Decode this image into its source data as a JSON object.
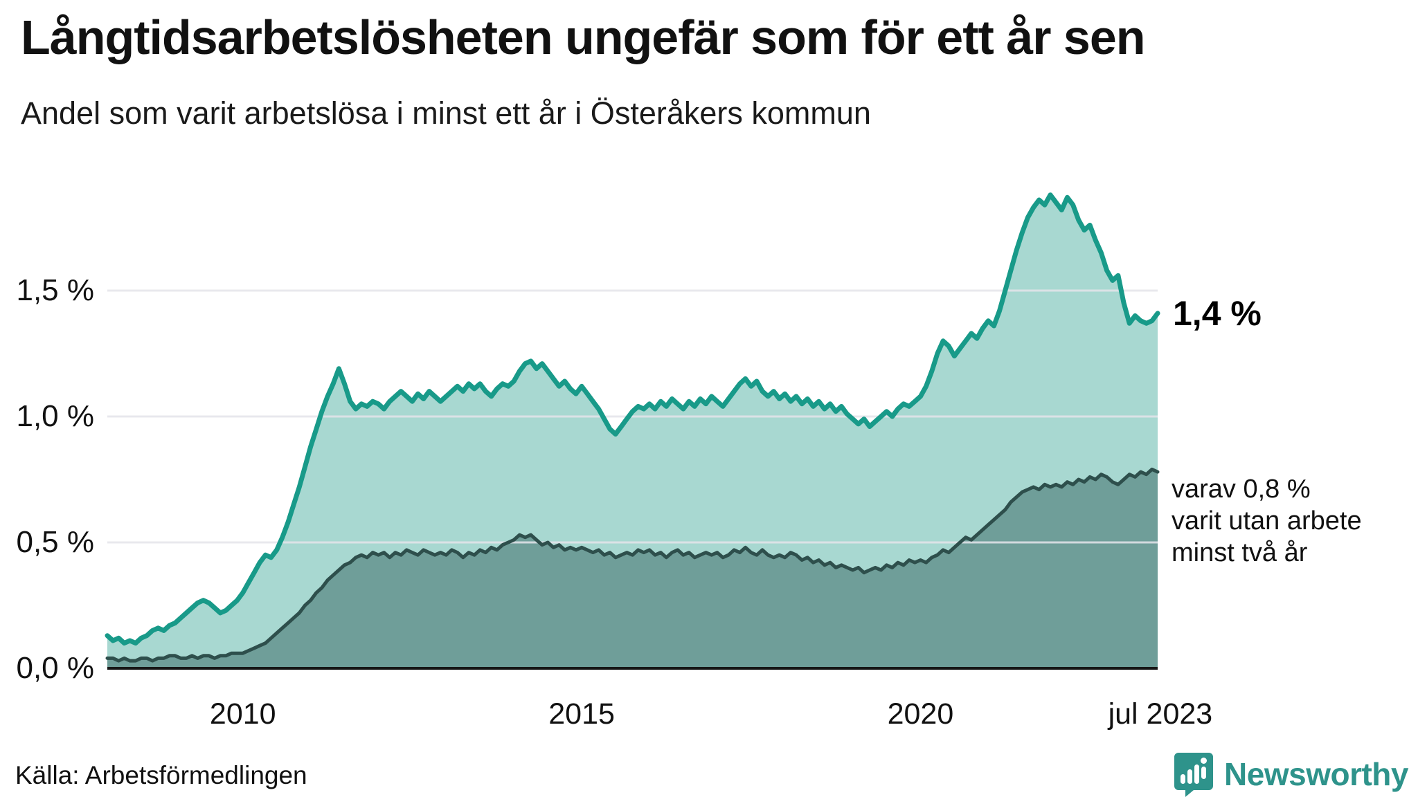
{
  "header": {
    "title": "Långtidsarbetslösheten ungefär som för ett år sen",
    "subtitle": "Andel som varit arbetslösa i minst ett år i Österåkers kommun"
  },
  "colors": {
    "series1_line": "#189a89",
    "series1_fill": "#a8d8d1",
    "series2_line": "#2e4f4c",
    "series2_fill": "#6f9e99",
    "gridline": "#e4e4ea",
    "axis": "#161616",
    "brand_teal": "#2e938b"
  },
  "chart_data": {
    "type": "area",
    "title": "Långtidsarbetslösheten ungefär som för ett år sen",
    "subtitle": "Andel som varit arbetslösa i minst ett år i Österåkers kommun",
    "x_start_year": 2008,
    "x_step_months": 1,
    "ylim": [
      0,
      1.95
    ],
    "grid": "horizontal",
    "y_ticks": [
      {
        "label": "1,5 %",
        "value": 1.5
      },
      {
        "label": "1,0 %",
        "value": 1.0
      },
      {
        "label": "0,5 %",
        "value": 0.5
      },
      {
        "label": "0,0 %",
        "value": 0.0
      }
    ],
    "x_ticks": [
      {
        "label": "2010",
        "year": 2010
      },
      {
        "label": "2015",
        "year": 2015
      },
      {
        "label": "2020",
        "year": 2020
      },
      {
        "label": "jul 2023",
        "year": 2023.54
      }
    ],
    "series": [
      {
        "name": "Arbetslösa minst ett år",
        "values": [
          0.13,
          0.11,
          0.12,
          0.1,
          0.11,
          0.1,
          0.12,
          0.13,
          0.15,
          0.16,
          0.15,
          0.17,
          0.18,
          0.2,
          0.22,
          0.24,
          0.26,
          0.27,
          0.26,
          0.24,
          0.22,
          0.23,
          0.25,
          0.27,
          0.3,
          0.34,
          0.38,
          0.42,
          0.45,
          0.44,
          0.47,
          0.52,
          0.58,
          0.65,
          0.72,
          0.8,
          0.88,
          0.95,
          1.02,
          1.08,
          1.13,
          1.19,
          1.13,
          1.06,
          1.03,
          1.05,
          1.04,
          1.06,
          1.05,
          1.03,
          1.06,
          1.08,
          1.1,
          1.08,
          1.06,
          1.09,
          1.07,
          1.1,
          1.08,
          1.06,
          1.08,
          1.1,
          1.12,
          1.1,
          1.13,
          1.11,
          1.13,
          1.1,
          1.08,
          1.11,
          1.13,
          1.12,
          1.14,
          1.18,
          1.21,
          1.22,
          1.19,
          1.21,
          1.18,
          1.15,
          1.12,
          1.14,
          1.11,
          1.09,
          1.12,
          1.09,
          1.06,
          1.03,
          0.99,
          0.95,
          0.93,
          0.96,
          0.99,
          1.02,
          1.04,
          1.03,
          1.05,
          1.03,
          1.06,
          1.04,
          1.07,
          1.05,
          1.03,
          1.06,
          1.04,
          1.07,
          1.05,
          1.08,
          1.06,
          1.04,
          1.07,
          1.1,
          1.13,
          1.15,
          1.12,
          1.14,
          1.1,
          1.08,
          1.1,
          1.07,
          1.09,
          1.06,
          1.08,
          1.05,
          1.07,
          1.04,
          1.06,
          1.03,
          1.05,
          1.02,
          1.04,
          1.01,
          0.99,
          0.97,
          0.99,
          0.96,
          0.98,
          1.0,
          1.02,
          1.0,
          1.03,
          1.05,
          1.04,
          1.06,
          1.08,
          1.12,
          1.18,
          1.25,
          1.3,
          1.28,
          1.24,
          1.27,
          1.3,
          1.33,
          1.31,
          1.35,
          1.38,
          1.36,
          1.42,
          1.5,
          1.58,
          1.66,
          1.73,
          1.79,
          1.83,
          1.86,
          1.84,
          1.88,
          1.85,
          1.82,
          1.87,
          1.84,
          1.78,
          1.74,
          1.76,
          1.7,
          1.65,
          1.58,
          1.54,
          1.56,
          1.45,
          1.37,
          1.4,
          1.38,
          1.37,
          1.38,
          1.41
        ]
      },
      {
        "name": "Varav utan arbete minst två år",
        "values": [
          0.04,
          0.04,
          0.03,
          0.04,
          0.03,
          0.03,
          0.04,
          0.04,
          0.03,
          0.04,
          0.04,
          0.05,
          0.05,
          0.04,
          0.04,
          0.05,
          0.04,
          0.05,
          0.05,
          0.04,
          0.05,
          0.05,
          0.06,
          0.06,
          0.06,
          0.07,
          0.08,
          0.09,
          0.1,
          0.12,
          0.14,
          0.16,
          0.18,
          0.2,
          0.22,
          0.25,
          0.27,
          0.3,
          0.32,
          0.35,
          0.37,
          0.39,
          0.41,
          0.42,
          0.44,
          0.45,
          0.44,
          0.46,
          0.45,
          0.46,
          0.44,
          0.46,
          0.45,
          0.47,
          0.46,
          0.45,
          0.47,
          0.46,
          0.45,
          0.46,
          0.45,
          0.47,
          0.46,
          0.44,
          0.46,
          0.45,
          0.47,
          0.46,
          0.48,
          0.47,
          0.49,
          0.5,
          0.51,
          0.53,
          0.52,
          0.53,
          0.51,
          0.49,
          0.5,
          0.48,
          0.49,
          0.47,
          0.48,
          0.47,
          0.48,
          0.47,
          0.46,
          0.47,
          0.45,
          0.46,
          0.44,
          0.45,
          0.46,
          0.45,
          0.47,
          0.46,
          0.47,
          0.45,
          0.46,
          0.44,
          0.46,
          0.47,
          0.45,
          0.46,
          0.44,
          0.45,
          0.46,
          0.45,
          0.46,
          0.44,
          0.45,
          0.47,
          0.46,
          0.48,
          0.46,
          0.45,
          0.47,
          0.45,
          0.44,
          0.45,
          0.44,
          0.46,
          0.45,
          0.43,
          0.44,
          0.42,
          0.43,
          0.41,
          0.42,
          0.4,
          0.41,
          0.4,
          0.39,
          0.4,
          0.38,
          0.39,
          0.4,
          0.39,
          0.41,
          0.4,
          0.42,
          0.41,
          0.43,
          0.42,
          0.43,
          0.42,
          0.44,
          0.45,
          0.47,
          0.46,
          0.48,
          0.5,
          0.52,
          0.51,
          0.53,
          0.55,
          0.57,
          0.59,
          0.61,
          0.63,
          0.66,
          0.68,
          0.7,
          0.71,
          0.72,
          0.71,
          0.73,
          0.72,
          0.73,
          0.72,
          0.74,
          0.73,
          0.75,
          0.74,
          0.76,
          0.75,
          0.77,
          0.76,
          0.74,
          0.73,
          0.75,
          0.77,
          0.76,
          0.78,
          0.77,
          0.79,
          0.78
        ]
      }
    ]
  },
  "annotations": {
    "last_value_label": "1,4 %",
    "secondary_lines": [
      "varav 0,8 %",
      "varit utan arbete",
      "minst två år"
    ]
  },
  "footer": {
    "source": "Källa: Arbetsförmedlingen",
    "brand": "Newsworthy"
  }
}
